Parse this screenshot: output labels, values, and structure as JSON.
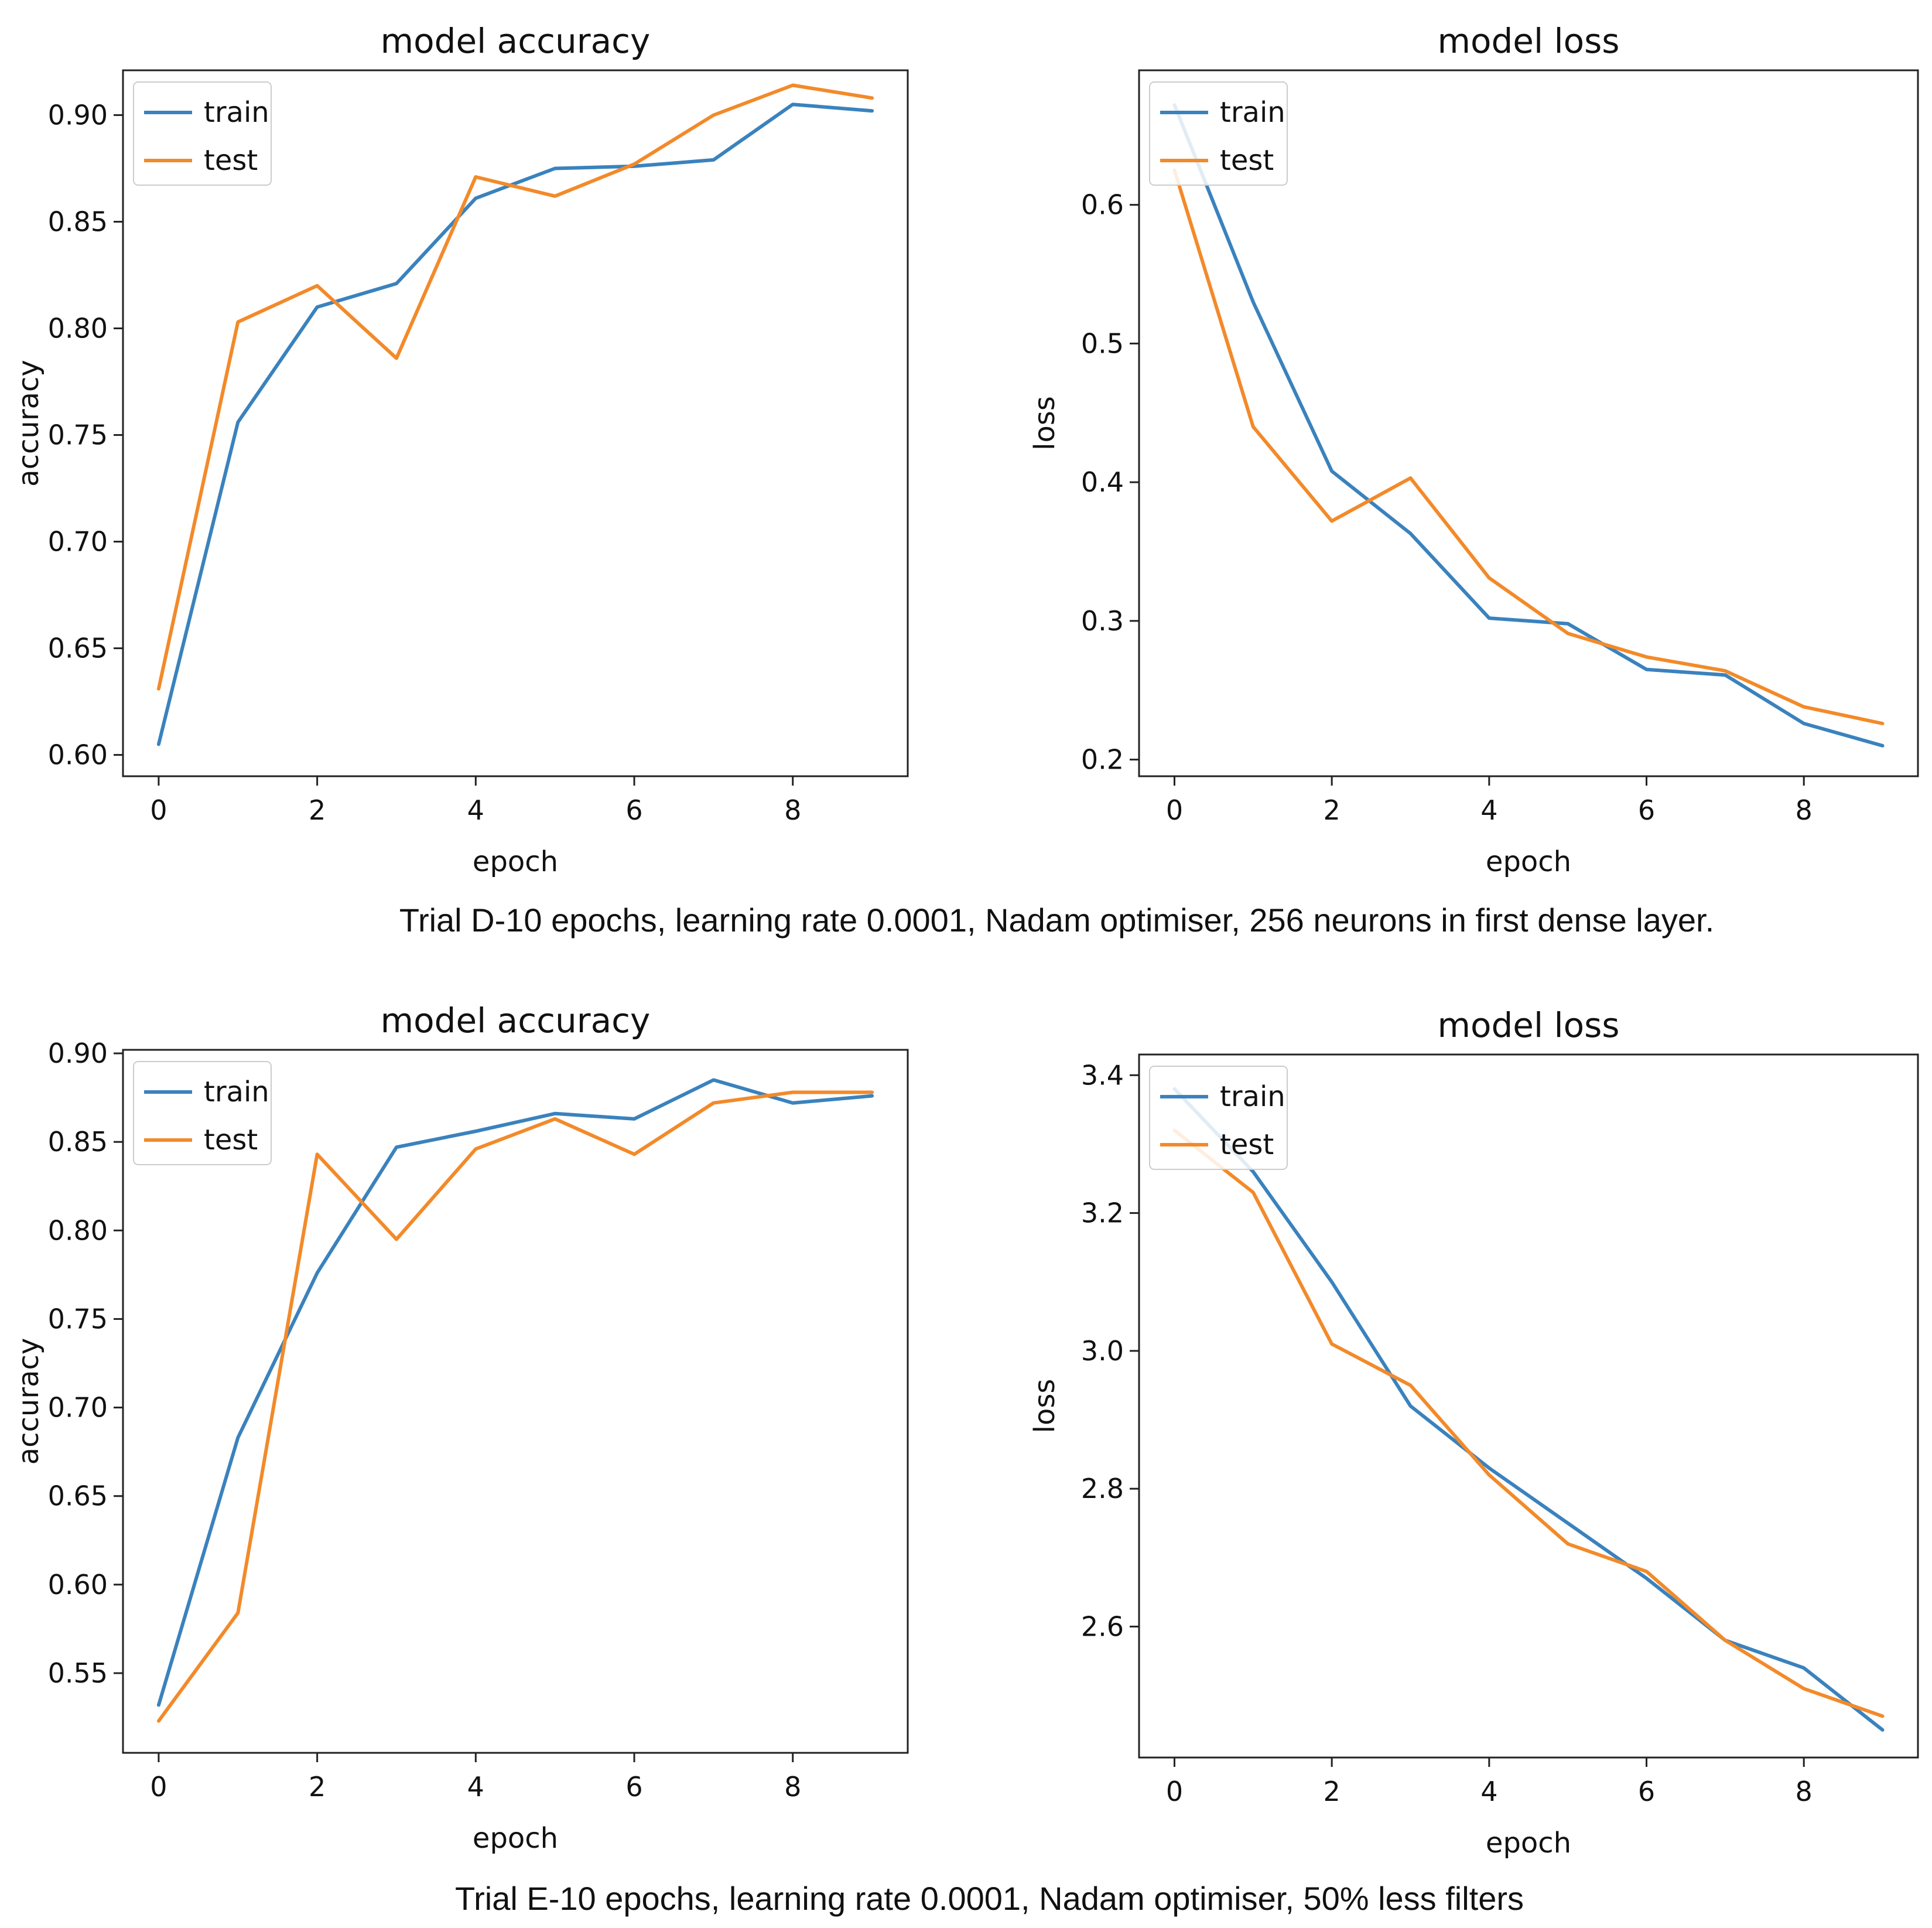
{
  "captions": {
    "trial_d": "Trial D-10 epochs, learning rate 0.0001, Nadam optimiser, 256 neurons in first dense layer.",
    "trial_e": "Trial E-10 epochs, learning rate 0.0001, Nadam optimiser, 50% less filters"
  },
  "colors": {
    "train": "#3a82bd",
    "test": "#f28a2a",
    "axis": "#222222"
  },
  "chart_data": [
    {
      "id": "d-accuracy",
      "type": "line",
      "title": "model accuracy",
      "xlabel": "epoch",
      "ylabel": "accuracy",
      "x": [
        0,
        1,
        2,
        3,
        4,
        5,
        6,
        7,
        8,
        9
      ],
      "xlim": [
        -0.45,
        9.45
      ],
      "ylim": [
        0.59,
        0.921
      ],
      "xticks": [
        0,
        2,
        4,
        6,
        8
      ],
      "yticks": [
        0.6,
        0.65,
        0.7,
        0.75,
        0.8,
        0.85,
        0.9
      ],
      "ytick_labels": [
        "0.60",
        "0.65",
        "0.70",
        "0.75",
        "0.80",
        "0.85",
        "0.90"
      ],
      "legend_position": "upper-left",
      "series": [
        {
          "name": "train",
          "values": [
            0.605,
            0.756,
            0.81,
            0.821,
            0.861,
            0.875,
            0.876,
            0.879,
            0.905,
            0.902
          ]
        },
        {
          "name": "test",
          "values": [
            0.631,
            0.803,
            0.82,
            0.786,
            0.871,
            0.862,
            0.877,
            0.9,
            0.914,
            0.908
          ]
        }
      ]
    },
    {
      "id": "d-loss",
      "type": "line",
      "title": "model loss",
      "xlabel": "epoch",
      "ylabel": "loss",
      "x": [
        0,
        1,
        2,
        3,
        4,
        5,
        6,
        7,
        8,
        9
      ],
      "xlim": [
        -0.45,
        9.45
      ],
      "ylim": [
        0.188,
        0.697
      ],
      "xticks": [
        0,
        2,
        4,
        6,
        8
      ],
      "yticks": [
        0.2,
        0.3,
        0.4,
        0.5,
        0.6
      ],
      "ytick_labels": [
        "0.2",
        "0.3",
        "0.4",
        "0.5",
        "0.6"
      ],
      "legend_position": "upper-left",
      "series": [
        {
          "name": "train",
          "values": [
            0.672,
            0.53,
            0.408,
            0.363,
            0.302,
            0.298,
            0.265,
            0.261,
            0.226,
            0.21
          ]
        },
        {
          "name": "test",
          "values": [
            0.625,
            0.44,
            0.372,
            0.403,
            0.331,
            0.291,
            0.274,
            0.264,
            0.238,
            0.226
          ]
        }
      ]
    },
    {
      "id": "e-accuracy",
      "type": "line",
      "title": "model accuracy",
      "xlabel": "epoch",
      "ylabel": "accuracy",
      "x": [
        0,
        1,
        2,
        3,
        4,
        5,
        6,
        7,
        8,
        9
      ],
      "xlim": [
        -0.45,
        9.45
      ],
      "ylim": [
        0.505,
        0.902
      ],
      "xticks": [
        0,
        2,
        4,
        6,
        8
      ],
      "yticks": [
        0.55,
        0.6,
        0.65,
        0.7,
        0.75,
        0.8,
        0.85,
        0.9
      ],
      "ytick_labels": [
        "0.55",
        "0.60",
        "0.65",
        "0.70",
        "0.75",
        "0.80",
        "0.85",
        "0.90"
      ],
      "legend_position": "upper-left",
      "series": [
        {
          "name": "train",
          "values": [
            0.532,
            0.683,
            0.776,
            0.847,
            0.856,
            0.866,
            0.863,
            0.885,
            0.872,
            0.876
          ]
        },
        {
          "name": "test",
          "values": [
            0.523,
            0.584,
            0.843,
            0.795,
            0.846,
            0.863,
            0.843,
            0.872,
            0.878,
            0.878
          ]
        }
      ]
    },
    {
      "id": "e-loss",
      "type": "line",
      "title": "model loss",
      "xlabel": "epoch",
      "ylabel": "loss",
      "x": [
        0,
        1,
        2,
        3,
        4,
        5,
        6,
        7,
        8,
        9
      ],
      "xlim": [
        -0.45,
        9.45
      ],
      "ylim": [
        2.41,
        3.43
      ],
      "xticks": [
        0,
        2,
        4,
        6,
        8
      ],
      "yticks": [
        2.6,
        2.8,
        3.0,
        3.2,
        3.4
      ],
      "ytick_labels": [
        "2.6",
        "2.8",
        "3.0",
        "3.2",
        "3.4"
      ],
      "legend_position": "upper-left",
      "series": [
        {
          "name": "train",
          "values": [
            3.38,
            3.26,
            3.1,
            2.92,
            2.83,
            2.75,
            2.67,
            2.58,
            2.54,
            2.45
          ]
        },
        {
          "name": "test",
          "values": [
            3.32,
            3.23,
            3.01,
            2.95,
            2.82,
            2.72,
            2.68,
            2.58,
            2.51,
            2.47
          ]
        }
      ]
    }
  ]
}
